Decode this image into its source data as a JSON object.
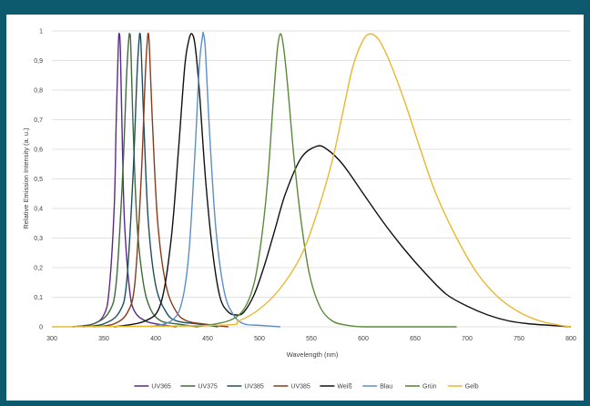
{
  "chart_data": {
    "type": "line",
    "title": "",
    "xlabel": "Wavelength (nm)",
    "ylabel": "Relative Emission Intensity (a. u.)",
    "xlim": [
      300,
      800
    ],
    "ylim": [
      0,
      1
    ],
    "x_ticks": [
      300,
      350,
      400,
      450,
      500,
      550,
      600,
      650,
      700,
      750,
      800
    ],
    "x_tick_labels": [
      "300",
      "350",
      "400",
      "450",
      "500",
      "550",
      "600",
      "650",
      "700",
      "750",
      "800"
    ],
    "y_ticks": [
      0,
      0.1,
      0.2,
      0.3,
      0.4,
      0.5,
      0.6,
      0.7,
      0.8,
      0.9,
      1
    ],
    "y_tick_labels": [
      "0",
      "0,1",
      "0,2",
      "0,3",
      "0,4",
      "0,5",
      "0,6",
      "0,7",
      "0,8",
      "0,9",
      "1"
    ],
    "grid": "horizontal",
    "legend_position": "bottom",
    "series": [
      {
        "name": "UV365",
        "color": "#5b2a86",
        "x": [
          320,
          340,
          350,
          355,
          360,
          362,
          364,
          365,
          366,
          368,
          370,
          375,
          380,
          390,
          400,
          420
        ],
        "y": [
          0,
          0.01,
          0.04,
          0.12,
          0.4,
          0.7,
          0.95,
          0.99,
          0.93,
          0.6,
          0.35,
          0.12,
          0.05,
          0.02,
          0.01,
          0
        ]
      },
      {
        "name": "UV375",
        "color": "#3f6b3a",
        "x": [
          320,
          340,
          355,
          362,
          368,
          372,
          374,
          375,
          376,
          378,
          382,
          388,
          395,
          405,
          420,
          440
        ],
        "y": [
          0,
          0.01,
          0.05,
          0.15,
          0.5,
          0.85,
          0.97,
          0.99,
          0.95,
          0.7,
          0.35,
          0.15,
          0.06,
          0.02,
          0.01,
          0
        ]
      },
      {
        "name": "UV385",
        "color": "#1f4e5f",
        "x": [
          330,
          350,
          365,
          372,
          378,
          382,
          384,
          385,
          386,
          389,
          393,
          400,
          410,
          420,
          440,
          460
        ],
        "y": [
          0,
          0.01,
          0.05,
          0.15,
          0.5,
          0.85,
          0.97,
          0.99,
          0.94,
          0.65,
          0.35,
          0.14,
          0.05,
          0.02,
          0.01,
          0
        ]
      },
      {
        "name": "UV385",
        "color": "#8b3a1a",
        "x": [
          340,
          360,
          373,
          380,
          386,
          390,
          392,
          393,
          394,
          397,
          402,
          410,
          420,
          430,
          445,
          470
        ],
        "y": [
          0,
          0.01,
          0.05,
          0.15,
          0.5,
          0.85,
          0.97,
          0.99,
          0.94,
          0.68,
          0.35,
          0.14,
          0.05,
          0.02,
          0.01,
          0
        ]
      },
      {
        "name": "Weiß",
        "color": "#111111",
        "x": [
          360,
          390,
          405,
          415,
          422,
          428,
          432,
          435,
          438,
          442,
          448,
          455,
          462,
          470,
          478,
          485,
          495,
          505,
          515,
          525,
          540,
          555,
          565,
          580,
          600,
          620,
          640,
          660,
          680,
          700,
          720,
          740,
          760,
          780,
          800
        ],
        "y": [
          0,
          0.02,
          0.08,
          0.3,
          0.6,
          0.88,
          0.97,
          0.99,
          0.95,
          0.8,
          0.5,
          0.25,
          0.1,
          0.05,
          0.04,
          0.05,
          0.11,
          0.21,
          0.33,
          0.45,
          0.57,
          0.61,
          0.6,
          0.55,
          0.45,
          0.35,
          0.26,
          0.18,
          0.11,
          0.07,
          0.04,
          0.02,
          0.01,
          0.005,
          0
        ]
      },
      {
        "name": "Blau",
        "color": "#5a8fc8",
        "x": [
          395,
          415,
          425,
          432,
          438,
          442,
          445,
          446,
          448,
          452,
          458,
          466,
          475,
          485,
          500,
          520
        ],
        "y": [
          0,
          0.02,
          0.08,
          0.25,
          0.6,
          0.88,
          0.98,
          0.99,
          0.93,
          0.65,
          0.33,
          0.12,
          0.04,
          0.01,
          0.005,
          0
        ]
      },
      {
        "name": "Grün",
        "color": "#5a8a3a",
        "x": [
          440,
          470,
          485,
          495,
          502,
          508,
          513,
          517,
          520,
          523,
          527,
          533,
          540,
          548,
          558,
          570,
          585,
          600,
          620,
          650,
          690
        ],
        "y": [
          0,
          0.02,
          0.06,
          0.15,
          0.3,
          0.5,
          0.75,
          0.93,
          0.99,
          0.95,
          0.82,
          0.58,
          0.36,
          0.18,
          0.07,
          0.02,
          0.005,
          0,
          0,
          0,
          0
        ]
      },
      {
        "name": "Gelb",
        "color": "#e8b830",
        "x": [
          300,
          460,
          480,
          500,
          520,
          540,
          555,
          570,
          580,
          590,
          600,
          607,
          615,
          625,
          640,
          655,
          670,
          690,
          710,
          730,
          750,
          770,
          790,
          800
        ],
        "y": [
          0,
          0.005,
          0.02,
          0.06,
          0.13,
          0.24,
          0.38,
          0.56,
          0.72,
          0.88,
          0.97,
          0.99,
          0.97,
          0.9,
          0.76,
          0.6,
          0.45,
          0.3,
          0.18,
          0.1,
          0.05,
          0.02,
          0.005,
          0
        ]
      }
    ]
  }
}
